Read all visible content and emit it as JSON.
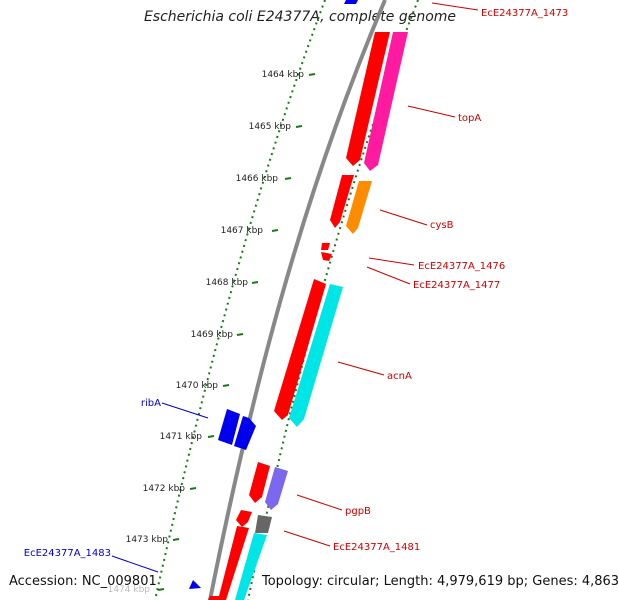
{
  "title": "Escherichia coli E24377A, complete genome",
  "footer": {
    "accession": "Accession: NC_009801",
    "topology": "Topology: circular; Length: 4,979,619 bp; Genes: 4,863"
  },
  "ticks": [
    {
      "label": "1464 kbp"
    },
    {
      "label": "1465 kbp"
    },
    {
      "label": "1466 kbp"
    },
    {
      "label": "1467 kbp"
    },
    {
      "label": "1468 kbp"
    },
    {
      "label": "1469 kbp"
    },
    {
      "label": "1470 kbp"
    },
    {
      "label": "1471 kbp"
    },
    {
      "label": "1472 kbp"
    },
    {
      "label": "1473 kbp"
    },
    {
      "label": "1474 kbp"
    }
  ],
  "gene_labels": [
    {
      "text": "EcE24377A_1473",
      "strand": "forward"
    },
    {
      "text": "topA",
      "strand": "forward"
    },
    {
      "text": "cysB",
      "strand": "forward"
    },
    {
      "text": "EcE24377A_1476",
      "strand": "forward"
    },
    {
      "text": "EcE24377A_1477",
      "strand": "forward"
    },
    {
      "text": "acnA",
      "strand": "forward"
    },
    {
      "text": "ribA",
      "strand": "reverse"
    },
    {
      "text": "pgpB",
      "strand": "forward"
    },
    {
      "text": "EcE24377A_1481",
      "strand": "forward"
    },
    {
      "text": "EcE24377A_1483",
      "strand": "reverse"
    }
  ],
  "colors": {
    "backbone": "#888888",
    "tick": "#1a7a1a",
    "cds": "#ff0000",
    "gene_forward_label": "#cc0000",
    "gene_reverse_label": "#0000cc",
    "forward_gene": "#0000ee",
    "topA": "#ff1aa0",
    "cysB": "#ff8c00",
    "acnA": "#00e5e5",
    "pgpB": "#7b68ee",
    "misc": "#666666"
  }
}
